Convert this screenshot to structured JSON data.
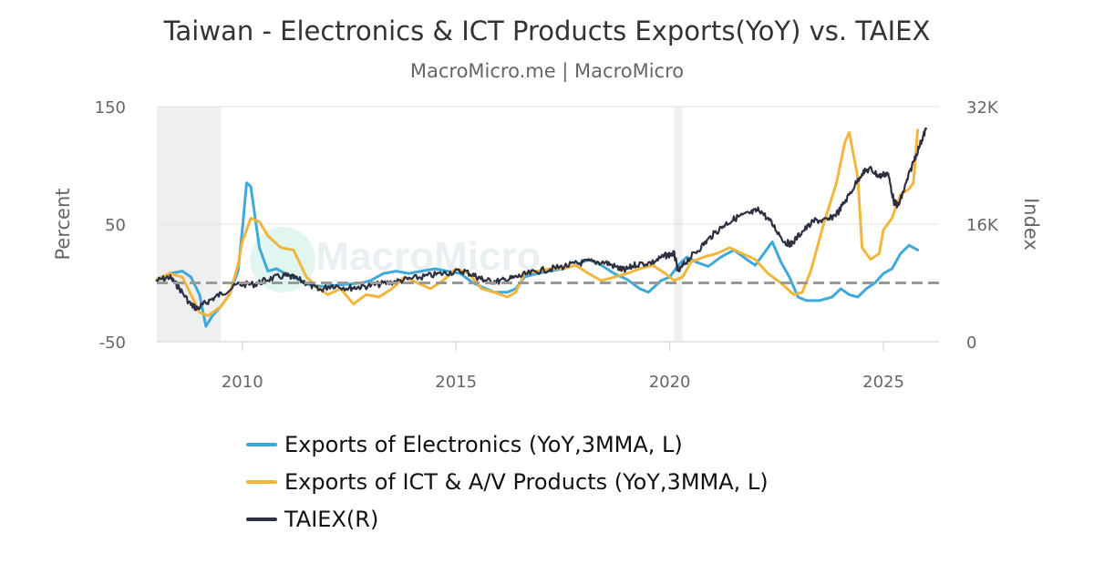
{
  "chart_data": {
    "type": "line",
    "title": "Taiwan - Electronics & ICT Products Exports(YoY) vs. TAIEX",
    "subtitle": "MacroMicro.me | MacroMicro",
    "watermark": "MacroMicro",
    "left_axis": {
      "label": "Percent",
      "range": [
        -50,
        150
      ],
      "ticks": [
        -50,
        50,
        150
      ]
    },
    "right_axis": {
      "label": "Index",
      "range": [
        0,
        32000
      ],
      "ticks": [
        0,
        16000,
        32000
      ],
      "tick_labels": [
        "0",
        "16K",
        "32K"
      ]
    },
    "x_axis": {
      "range": [
        2008,
        2026.3
      ],
      "ticks": [
        2010,
        2015,
        2020,
        2025
      ],
      "tick_labels": [
        "2010",
        "2015",
        "2020",
        "2025"
      ]
    },
    "reference_line": {
      "value": 0,
      "axis": "left",
      "style": "dashed"
    },
    "recession_shading": [
      [
        2008.0,
        2009.5
      ],
      [
        2020.1,
        2020.3
      ]
    ],
    "legend_position": "bottom",
    "series": [
      {
        "name": "Exports of Electronics (YoY,3MMA, L)",
        "axis": "left",
        "color": "#3fa9d9",
        "x": [
          2008.0,
          2008.3,
          2008.6,
          2008.8,
          2009.0,
          2009.15,
          2009.3,
          2009.5,
          2009.7,
          2009.9,
          2010.0,
          2010.1,
          2010.2,
          2010.4,
          2010.6,
          2010.8,
          2011.0,
          2011.3,
          2011.6,
          2011.9,
          2012.2,
          2012.5,
          2012.8,
          2013.0,
          2013.3,
          2013.6,
          2013.9,
          2014.2,
          2014.5,
          2014.8,
          2015.1,
          2015.4,
          2015.7,
          2015.9,
          2016.2,
          2016.4,
          2016.6,
          2016.9,
          2017.2,
          2017.5,
          2017.8,
          2018.1,
          2018.4,
          2018.7,
          2019.0,
          2019.3,
          2019.5,
          2019.8,
          2020.0,
          2020.2,
          2020.4,
          2020.6,
          2020.9,
          2021.2,
          2021.5,
          2021.8,
          2022.0,
          2022.2,
          2022.4,
          2022.6,
          2022.8,
          2023.0,
          2023.2,
          2023.5,
          2023.8,
          2024.0,
          2024.2,
          2024.4,
          2024.6,
          2024.8,
          2025.0,
          2025.2,
          2025.4,
          2025.6,
          2025.8
        ],
        "values": [
          2,
          8,
          10,
          5,
          -10,
          -37,
          -28,
          -20,
          -10,
          10,
          45,
          85,
          82,
          30,
          10,
          12,
          8,
          3,
          -2,
          -3,
          -2,
          -1,
          0,
          2,
          8,
          10,
          8,
          10,
          12,
          10,
          8,
          0,
          -5,
          -8,
          -8,
          -5,
          5,
          8,
          10,
          12,
          15,
          20,
          15,
          8,
          3,
          -5,
          -8,
          2,
          5,
          15,
          22,
          18,
          14,
          22,
          28,
          20,
          15,
          25,
          35,
          18,
          5,
          -12,
          -15,
          -15,
          -12,
          -5,
          -10,
          -12,
          -5,
          0,
          8,
          12,
          25,
          32,
          28
        ]
      },
      {
        "name": "Exports of ICT & A/V Products (YoY,3MMA, L)",
        "axis": "left",
        "color": "#f2b63c",
        "x": [
          2008.0,
          2008.3,
          2008.6,
          2008.8,
          2009.0,
          2009.2,
          2009.5,
          2009.7,
          2009.9,
          2010.0,
          2010.2,
          2010.4,
          2010.6,
          2010.9,
          2011.2,
          2011.5,
          2011.8,
          2012.0,
          2012.3,
          2012.6,
          2012.9,
          2013.2,
          2013.5,
          2013.8,
          2014.1,
          2014.4,
          2014.7,
          2015.0,
          2015.3,
          2015.6,
          2015.9,
          2016.2,
          2016.4,
          2016.6,
          2016.9,
          2017.2,
          2017.5,
          2017.8,
          2018.1,
          2018.4,
          2018.7,
          2019.0,
          2019.3,
          2019.6,
          2019.9,
          2020.1,
          2020.3,
          2020.5,
          2020.8,
          2021.1,
          2021.4,
          2021.7,
          2022.0,
          2022.3,
          2022.6,
          2022.9,
          2023.1,
          2023.3,
          2023.6,
          2023.9,
          2024.1,
          2024.2,
          2024.4,
          2024.5,
          2024.7,
          2024.9,
          2025.0,
          2025.2,
          2025.4,
          2025.6,
          2025.7,
          2025.8
        ],
        "values": [
          3,
          8,
          5,
          -10,
          -25,
          -28,
          -20,
          -10,
          15,
          35,
          55,
          52,
          40,
          30,
          28,
          5,
          -5,
          -10,
          -5,
          -18,
          -10,
          -12,
          -5,
          5,
          0,
          -5,
          2,
          12,
          8,
          -5,
          -8,
          -12,
          -8,
          8,
          10,
          12,
          12,
          15,
          8,
          2,
          5,
          8,
          12,
          15,
          8,
          2,
          5,
          18,
          22,
          25,
          30,
          25,
          20,
          8,
          0,
          -10,
          -8,
          10,
          50,
          85,
          120,
          128,
          90,
          30,
          20,
          25,
          45,
          55,
          75,
          80,
          85,
          130
        ]
      },
      {
        "name": "TAIEX(R)",
        "axis": "right",
        "color": "#2d3040",
        "x": [
          2008.0,
          2008.3,
          2008.5,
          2008.8,
          2008.95,
          2009.2,
          2009.5,
          2009.9,
          2010.3,
          2010.6,
          2011.0,
          2011.2,
          2011.5,
          2011.8,
          2012.1,
          2012.5,
          2012.8,
          2013.2,
          2013.6,
          2014.0,
          2014.4,
          2014.8,
          2015.2,
          2015.5,
          2015.7,
          2016.0,
          2016.3,
          2016.6,
          2017.0,
          2017.4,
          2017.8,
          2018.1,
          2018.5,
          2018.8,
          2018.95,
          2019.2,
          2019.6,
          2019.9,
          2020.1,
          2020.2,
          2020.4,
          2020.7,
          2021.0,
          2021.3,
          2021.6,
          2021.9,
          2022.1,
          2022.4,
          2022.7,
          2022.85,
          2023.1,
          2023.4,
          2023.7,
          2023.95,
          2024.2,
          2024.5,
          2024.7,
          2024.9,
          2025.1,
          2025.25,
          2025.35,
          2025.5,
          2025.7,
          2025.9,
          2026.0
        ],
        "values": [
          8300,
          8800,
          7500,
          5000,
          4500,
          5500,
          6500,
          7800,
          7800,
          8500,
          9000,
          8700,
          8000,
          7000,
          7700,
          7300,
          7500,
          7800,
          8200,
          8600,
          9000,
          9400,
          9600,
          8800,
          8300,
          8200,
          8600,
          9100,
          9700,
          10100,
          10600,
          10900,
          10800,
          10000,
          9700,
          10500,
          10800,
          11700,
          12000,
          9500,
          11000,
          12700,
          14500,
          16000,
          17000,
          17500,
          18000,
          16000,
          13500,
          13300,
          15000,
          16500,
          16500,
          17700,
          20000,
          23000,
          23500,
          22500,
          23000,
          19000,
          18500,
          21000,
          24500,
          27500,
          29000
        ]
      }
    ]
  }
}
